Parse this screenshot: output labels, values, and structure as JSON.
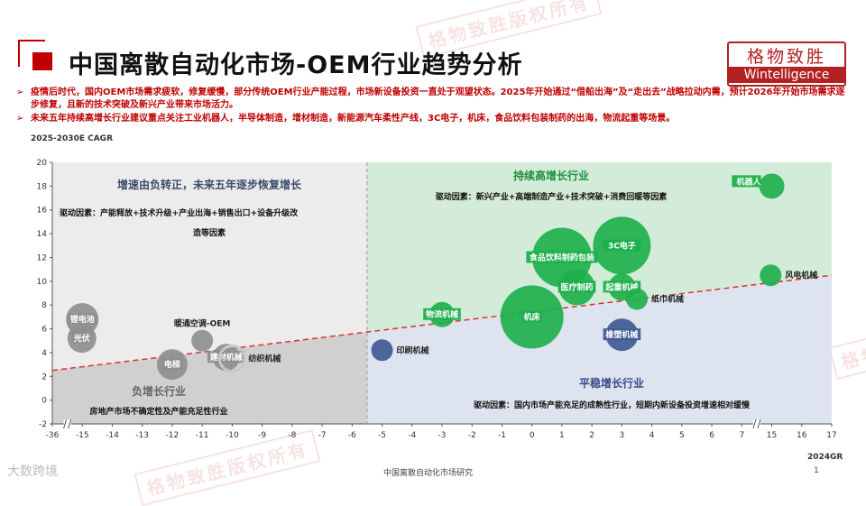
{
  "header": {
    "title": "中国离散自动化市场-OEM行业趋势分析",
    "logo_cn": "格物致胜",
    "logo_en": "Wintelligence",
    "watermark": "格物致胜版权所有"
  },
  "bullets": [
    "疫情后时代，国内OEM市场需求疲软，修复缓慢，部分传统OEM行业产能过程，市场新设备投资一直处于观望状态。2025年开始通过“借船出海”及“走出去”战略拉动内需，预计2026年开始市场需求逐步修复，且新的技术突破及新兴产业带来市场活力。",
    "未来五年持续高增长行业建议重点关注工业机器人，半导体制造，增材制造，新能源汽车柔性产线，3C电子，机床，食品饮料包装制药的出海，物流起重等场景。"
  ],
  "footer": {
    "source": "中国离散自动化市场研究",
    "page": "1",
    "brand": "大数跨境"
  },
  "colors": {
    "accent": "#c00000",
    "green_quadrant": "#d3ecd9",
    "blue_quadrant": "#dde3ef",
    "grey_quadrant": "#d0d0d0",
    "green_bubble": "#1eb04c",
    "blue_bubble": "#3f5a92",
    "grey_bubble": "#8f8f8f"
  },
  "chart_data": {
    "type": "scatter",
    "ylabel": "2025-2030E CAGR",
    "xlabel": "2024GR",
    "ylim": [
      -2,
      20
    ],
    "yticks": [
      -2,
      0,
      2,
      4,
      6,
      8,
      10,
      12,
      14,
      16,
      18,
      20
    ],
    "xticks": [
      -36,
      -15,
      -14,
      -13,
      -12,
      -11,
      -10,
      -9,
      -8,
      -7,
      -6,
      -5,
      -4,
      -3,
      -2,
      -1,
      0,
      1,
      2,
      3,
      4,
      5,
      6,
      7,
      15,
      16,
      17
    ],
    "axis_breaks": "x axis broken between -36 and -15, and between 7 and 15",
    "quadrants": [
      {
        "name": "增速由负转正，未来五年逐步恢复增长",
        "driver": "驱动因素：产能释放+技术升级+产业出海+销售出口+设备升级改造等因素",
        "color": "#d0d0d0"
      },
      {
        "name": "持续高增长行业",
        "driver": "驱动因素：新兴产业+高端制造产业+技术突破+消费回暖等因素",
        "color": "#d3ecd9"
      },
      {
        "name": "负增长行业",
        "driver": "房地产市场不确定性及产能充足性行业",
        "color": "#d0d0d0"
      },
      {
        "name": "平稳增长行业",
        "driver": "驱动因素：国内市场产能充足的成熟性行业，短期内新设备投资增速相对缓慢",
        "color": "#dde3ef"
      }
    ],
    "trend_line": {
      "style": "dashed",
      "color": "#e03030",
      "from": [
        -36,
        2.5
      ],
      "to": [
        17,
        10.5
      ]
    },
    "divider_x": -5.5,
    "points": [
      {
        "label": "锂电池",
        "x": -15,
        "y": 6.8,
        "size": 18,
        "color": "#8f8f8f",
        "label_pos": "inside"
      },
      {
        "label": "光伏",
        "x": -15.3,
        "y": 5.2,
        "size": 16,
        "color": "#8f8f8f",
        "label_pos": "inside"
      },
      {
        "label": "电梯",
        "x": -12,
        "y": 3.0,
        "size": 17,
        "color": "#8f8f8f",
        "label_pos": "inside"
      },
      {
        "label": "暖通空调-OEM",
        "x": -11,
        "y": 5.0,
        "size": 12,
        "color": "#8f8f8f",
        "label_pos": "above"
      },
      {
        "label": "建材机械",
        "x": -10.2,
        "y": 3.6,
        "size": 15,
        "color": "#8f8f8f",
        "label_pos": "inside"
      },
      {
        "label": "纺织机械",
        "x": -10,
        "y": 3.5,
        "size": 14,
        "color": "#c8c8c8",
        "label_pos": "right"
      },
      {
        "label": "印刷机械",
        "x": -5,
        "y": 4.2,
        "size": 12,
        "color": "#3f5a92",
        "label_pos": "right"
      },
      {
        "label": "物流机械",
        "x": -3,
        "y": 7.2,
        "size": 14,
        "color": "#1eb04c",
        "label_pos": "inside"
      },
      {
        "label": "机床",
        "x": 0,
        "y": 7.0,
        "size": 35,
        "color": "#1eb04c",
        "label_pos": "inside"
      },
      {
        "label": "食品饮料制药包装",
        "x": 1,
        "y": 12.0,
        "size": 33,
        "color": "#1eb04c",
        "label_pos": "inside"
      },
      {
        "label": "3C电子",
        "x": 3,
        "y": 13.0,
        "size": 32,
        "color": "#1eb04c",
        "label_pos": "inside"
      },
      {
        "label": "医疗制药",
        "x": 1.5,
        "y": 9.5,
        "size": 20,
        "color": "#1eb04c",
        "label_pos": "inside"
      },
      {
        "label": "起重机械",
        "x": 3,
        "y": 9.5,
        "size": 15,
        "color": "#1eb04c",
        "label_pos": "inside"
      },
      {
        "label": "纸巾机械",
        "x": 3.5,
        "y": 8.5,
        "size": 12,
        "color": "#1eb04c",
        "label_pos": "right"
      },
      {
        "label": "橡塑机械",
        "x": 3,
        "y": 5.5,
        "size": 18,
        "color": "#3f5a92",
        "label_pos": "inside"
      },
      {
        "label": "机器人",
        "x": 15,
        "y": 18.0,
        "size": 14,
        "color": "#1eb04c",
        "label_pos": "left"
      },
      {
        "label": "风电机械",
        "x": 14.7,
        "y": 10.5,
        "size": 12,
        "color": "#1eb04c",
        "label_pos": "right"
      }
    ]
  }
}
